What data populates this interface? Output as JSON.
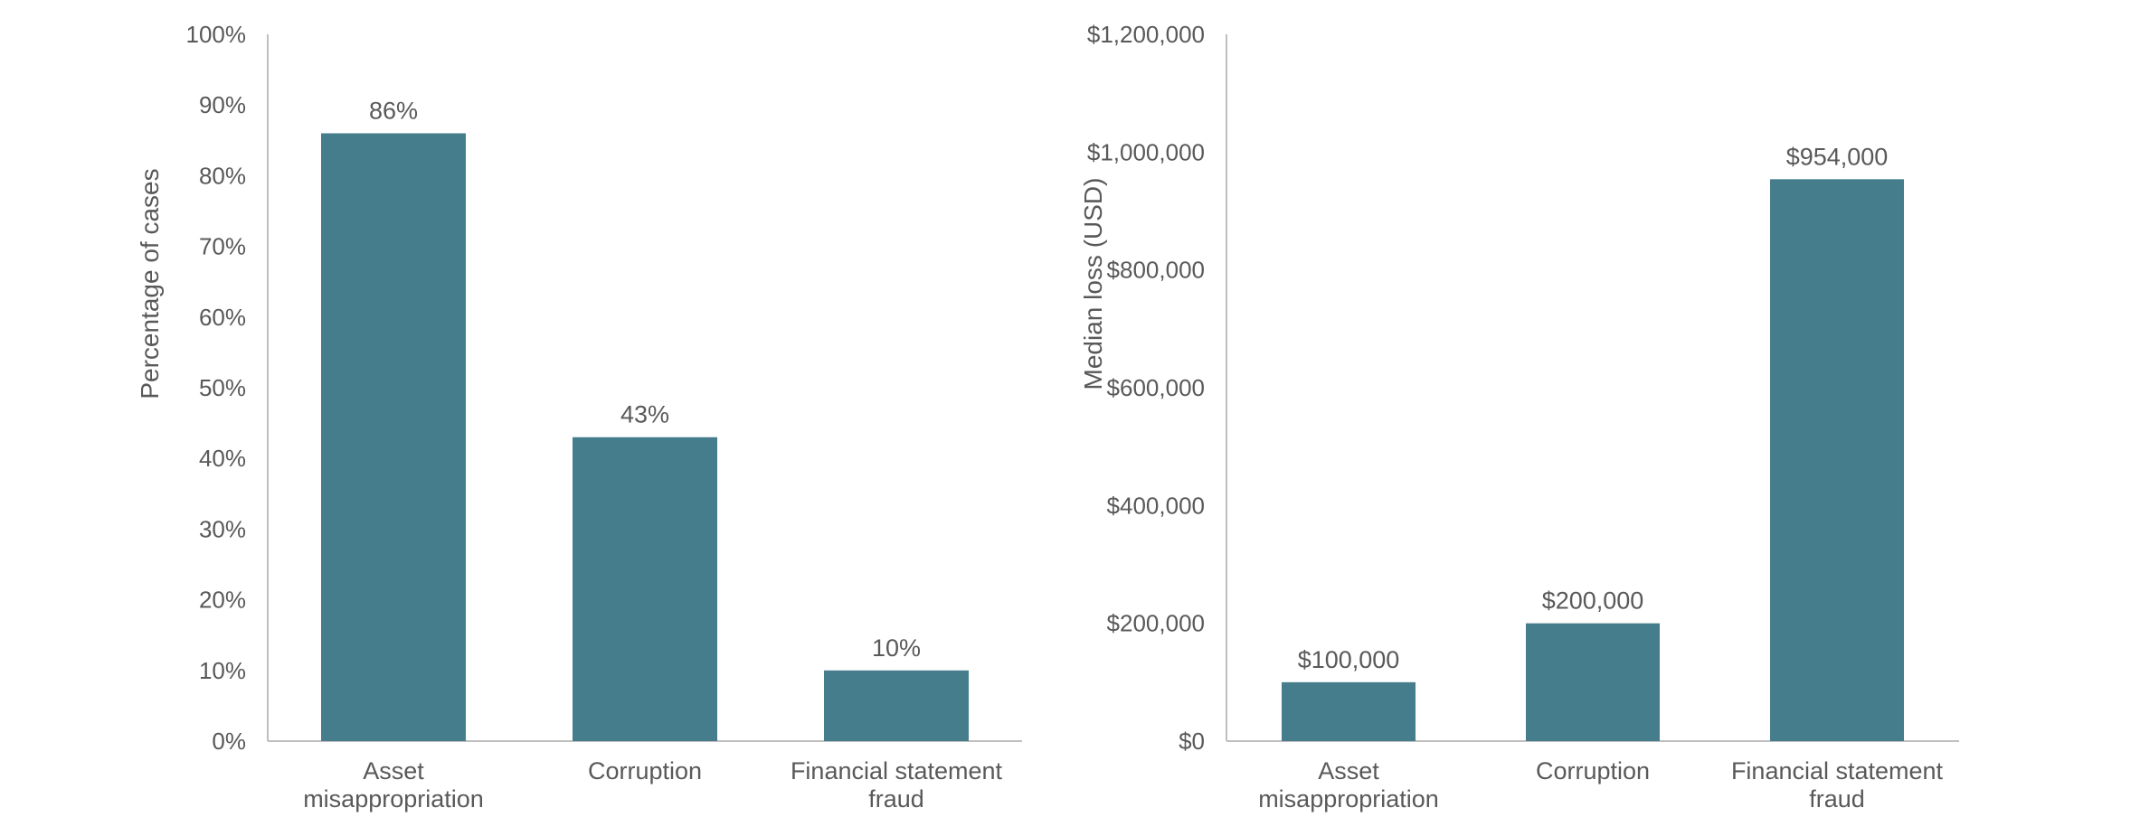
{
  "colors": {
    "bar": "#467D8C",
    "axis": "#BFBFBF",
    "text": "#595959"
  },
  "chart_data": [
    {
      "type": "bar",
      "title": "",
      "xlabel": "",
      "ylabel": "Percentage of cases",
      "categories": [
        [
          "Asset",
          "misappropriation"
        ],
        [
          "Corruption"
        ],
        [
          "Financial statement",
          "fraud"
        ]
      ],
      "values": [
        86,
        43,
        10
      ],
      "data_labels": [
        "86%",
        "43%",
        "10%"
      ],
      "ylim": [
        0,
        100
      ],
      "yticks": [
        0,
        10,
        20,
        30,
        40,
        50,
        60,
        70,
        80,
        90,
        100
      ],
      "ytick_labels": [
        "0%",
        "10%",
        "20%",
        "30%",
        "40%",
        "50%",
        "60%",
        "70%",
        "80%",
        "90%",
        "100%"
      ],
      "grid": false,
      "legend": "none"
    },
    {
      "type": "bar",
      "title": "",
      "xlabel": "",
      "ylabel": "Median loss (USD)",
      "categories": [
        [
          "Asset",
          "misappropriation"
        ],
        [
          "Corruption"
        ],
        [
          "Financial statement",
          "fraud"
        ]
      ],
      "values": [
        100000,
        200000,
        954000
      ],
      "data_labels": [
        "$100,000",
        "$200,000",
        "$954,000"
      ],
      "ylim": [
        0,
        1200000
      ],
      "yticks": [
        0,
        200000,
        400000,
        600000,
        800000,
        1000000,
        1200000
      ],
      "ytick_labels": [
        "$0",
        "$200,000",
        "$400,000",
        "$600,000",
        "$800,000",
        "$1,000,000",
        "$1,200,000"
      ],
      "grid": false,
      "legend": "none"
    }
  ]
}
